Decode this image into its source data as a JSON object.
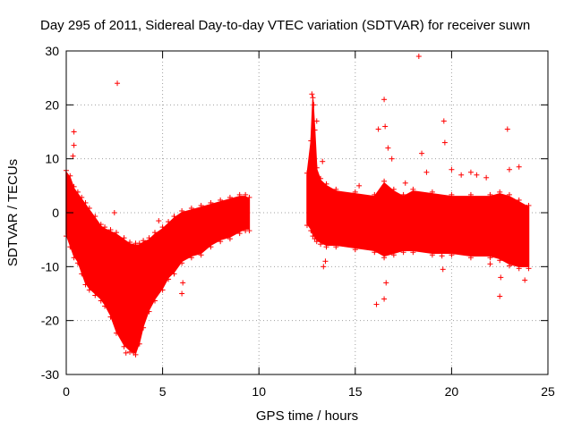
{
  "chart_data": {
    "type": "scatter",
    "title": "Day 295 of 2011, Sidereal Day-to-day VTEC variation (SDTVAR) for receiver suwn",
    "xlabel": "GPS time / hours",
    "ylabel": "SDTVAR / TECUs",
    "xlim": [
      0,
      25
    ],
    "ylim": [
      -30,
      30
    ],
    "xticks": [
      0,
      5,
      10,
      15,
      20,
      25
    ],
    "yticks": [
      -30,
      -20,
      -10,
      0,
      10,
      20,
      30
    ],
    "grid": true,
    "marker": "+",
    "series": [
      {
        "name": "SDTVAR",
        "color": "#ff0000",
        "bands": [
          {
            "x": [
              0.0,
              0.2,
              0.4,
              0.6,
              0.8,
              1.0,
              1.2,
              1.5,
              1.8,
              2.0,
              2.3,
              2.6,
              3.0,
              3.3,
              3.6,
              3.8,
              4.0,
              4.3,
              4.6,
              5.0,
              5.3,
              5.6,
              6.0,
              6.5,
              7.0,
              7.5,
              8.0,
              8.5,
              9.0,
              9.3,
              9.5
            ],
            "upper": [
              7.5,
              6.5,
              4.5,
              3.5,
              2.5,
              1.5,
              0.5,
              -1.0,
              -2.5,
              -3.0,
              -3.5,
              -4.0,
              -5.0,
              -5.8,
              -6.0,
              -6.0,
              -5.5,
              -5.0,
              -4.0,
              -3.0,
              -2.0,
              -1.0,
              0.0,
              0.5,
              1.0,
              1.5,
              2.0,
              2.5,
              3.0,
              3.0,
              2.5
            ],
            "lower": [
              -4.0,
              -6.0,
              -8.0,
              -9.0,
              -11.0,
              -13.0,
              -14.0,
              -15.0,
              -16.0,
              -17.0,
              -19.0,
              -22.0,
              -24.5,
              -25.5,
              -26.0,
              -24.0,
              -21.0,
              -18.0,
              -16.0,
              -14.0,
              -12.0,
              -11.0,
              -9.0,
              -8.0,
              -7.5,
              -6.0,
              -5.0,
              -4.5,
              -3.5,
              -3.0,
              -3.0
            ]
          },
          {
            "x": [
              12.5,
              12.7,
              12.8,
              12.9,
              13.0,
              13.2,
              13.5,
              14.0,
              15.0,
              16.0,
              16.5,
              17.0,
              17.5,
              18.0,
              19.0,
              20.0,
              21.0,
              22.0,
              22.5,
              23.0,
              23.5,
              24.0
            ],
            "upper": [
              7.0,
              13.0,
              21.0,
              15.0,
              8.0,
              6.0,
              5.0,
              4.0,
              3.5,
              3.0,
              5.5,
              4.0,
              3.0,
              4.0,
              3.5,
              3.0,
              3.0,
              3.0,
              3.5,
              3.0,
              2.0,
              1.0
            ],
            "lower": [
              -2.0,
              -3.0,
              -4.0,
              -4.5,
              -5.0,
              -5.5,
              -6.0,
              -6.0,
              -6.5,
              -7.0,
              -8.0,
              -7.5,
              -7.0,
              -7.0,
              -7.5,
              -7.5,
              -8.0,
              -8.0,
              -8.5,
              -9.5,
              -10.0,
              -10.0
            ]
          }
        ],
        "points": [
          {
            "x": 0.4,
            "y": 15.0
          },
          {
            "x": 0.4,
            "y": 12.5
          },
          {
            "x": 0.35,
            "y": 10.5
          },
          {
            "x": 2.65,
            "y": 24.0
          },
          {
            "x": 2.5,
            "y": 0.0
          },
          {
            "x": 2.5,
            "y": -19.5
          },
          {
            "x": 3.1,
            "y": -26.0
          },
          {
            "x": 3.5,
            "y": -26.0
          },
          {
            "x": 4.8,
            "y": -1.5
          },
          {
            "x": 6.0,
            "y": -15.0
          },
          {
            "x": 6.05,
            "y": -13.0
          },
          {
            "x": 9.4,
            "y": 0.0
          },
          {
            "x": 12.75,
            "y": 22.0
          },
          {
            "x": 12.85,
            "y": 20.0
          },
          {
            "x": 13.0,
            "y": 17.0
          },
          {
            "x": 13.3,
            "y": 9.5
          },
          {
            "x": 13.35,
            "y": -10.0
          },
          {
            "x": 13.45,
            "y": -9.0
          },
          {
            "x": 15.2,
            "y": 5.0
          },
          {
            "x": 16.1,
            "y": -17.0
          },
          {
            "x": 16.2,
            "y": 15.5
          },
          {
            "x": 16.5,
            "y": 21.0
          },
          {
            "x": 16.55,
            "y": 16.0
          },
          {
            "x": 16.7,
            "y": 12.0
          },
          {
            "x": 16.9,
            "y": 10.0
          },
          {
            "x": 16.5,
            "y": -16.0
          },
          {
            "x": 16.6,
            "y": -13.0
          },
          {
            "x": 17.6,
            "y": 5.5
          },
          {
            "x": 18.3,
            "y": 29.0
          },
          {
            "x": 18.45,
            "y": 11.0
          },
          {
            "x": 18.7,
            "y": 7.5
          },
          {
            "x": 19.6,
            "y": 17.0
          },
          {
            "x": 19.65,
            "y": 13.0
          },
          {
            "x": 19.55,
            "y": -10.5
          },
          {
            "x": 19.5,
            "y": -8.0
          },
          {
            "x": 20.0,
            "y": 8.0
          },
          {
            "x": 20.5,
            "y": 7.0
          },
          {
            "x": 21.0,
            "y": 7.5
          },
          {
            "x": 21.3,
            "y": 7.0
          },
          {
            "x": 21.8,
            "y": 6.5
          },
          {
            "x": 22.0,
            "y": -9.5
          },
          {
            "x": 22.5,
            "y": -15.5
          },
          {
            "x": 22.55,
            "y": -12.0
          },
          {
            "x": 22.9,
            "y": 15.5
          },
          {
            "x": 23.0,
            "y": 8.0
          },
          {
            "x": 23.5,
            "y": 8.5
          },
          {
            "x": 23.8,
            "y": -12.5
          },
          {
            "x": 23.9,
            "y": 1.0
          }
        ]
      }
    ]
  }
}
